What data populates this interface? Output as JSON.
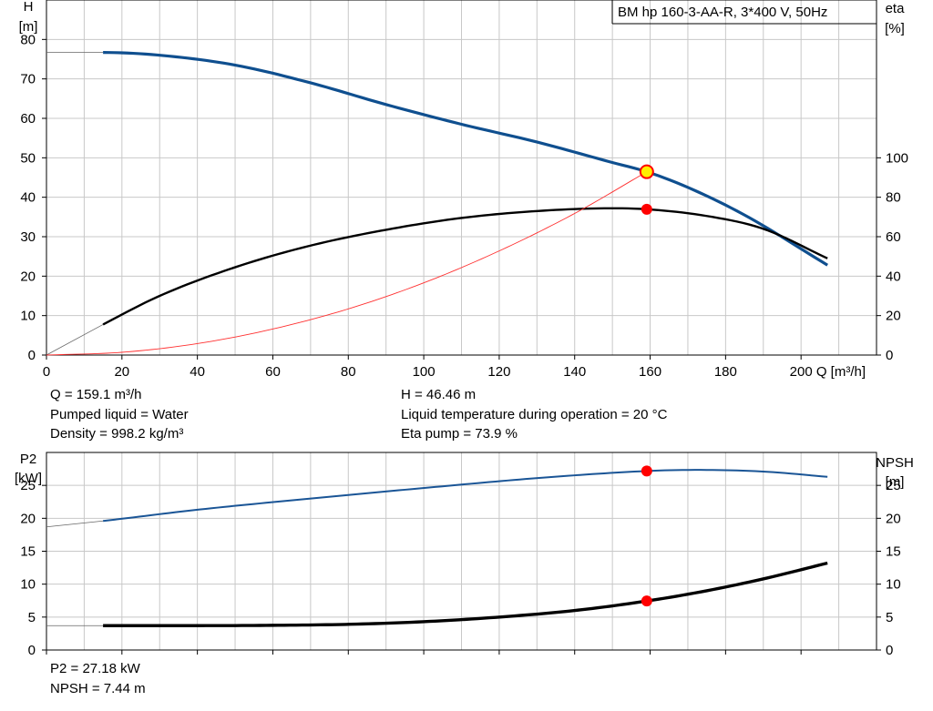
{
  "colors": {
    "head_curve": "#0f4f8f",
    "efficiency_curve": "#000000",
    "system_curve": "#ff3030",
    "power_curve": "#1a5596",
    "npsh_curve": "#000000",
    "duty_point": "#ff0000",
    "duty_point_highlight": "#ffee00",
    "grid": "#c8c8c8"
  },
  "info": {
    "q": "Q = 159.1 m³/h",
    "liquid": "Pumped liquid = Water",
    "density": "Density = 998.2 kg/m³",
    "h": "H = 46.46 m",
    "temp": "Liquid temperature during operation = 20 °C",
    "eta": "Eta pump = 73.9 %",
    "p2": "P2 = 27.18 kW",
    "npsh": "NPSH = 7.44 m"
  },
  "chart_data": [
    {
      "type": "line",
      "title": "BM hp 160-3-AA-R, 3*400 V, 50Hz",
      "xlabel": "Q [m³/h]",
      "ylabel": "H [m]",
      "ylabel_line1": "H",
      "ylabel_line2": "[m]",
      "y2label": "eta [%]",
      "y2label_line1": "eta",
      "y2label_line2": "[%]",
      "xlim": [
        0,
        220
      ],
      "ylim": [
        0,
        90
      ],
      "y2lim": [
        0,
        180
      ],
      "xticks": [
        0,
        20,
        40,
        60,
        80,
        100,
        120,
        140,
        160,
        180,
        200
      ],
      "yticks": [
        0,
        10,
        20,
        30,
        40,
        50,
        60,
        70,
        80
      ],
      "y2ticks": [
        0,
        20,
        40,
        60,
        80,
        100
      ],
      "grid": true,
      "series": [
        {
          "key": "head",
          "axis": "left",
          "extrapolate_to_zero": true,
          "x": [
            0,
            15,
            30,
            50,
            70,
            90,
            110,
            130,
            150,
            159.1,
            170,
            185,
            207
          ],
          "y": [
            76.7,
            76.7,
            76.0,
            73.5,
            69.0,
            63.5,
            58.5,
            54.0,
            48.8,
            46.46,
            42.5,
            35.5,
            22.8
          ]
        },
        {
          "key": "eta",
          "axis": "right",
          "extrapolate_to_zero": true,
          "x": [
            0,
            15,
            30,
            50,
            70,
            90,
            110,
            130,
            150,
            159.1,
            175,
            190,
            207
          ],
          "y": [
            0,
            15.5,
            30,
            44.5,
            55.5,
            63.5,
            69.5,
            73,
            74.4,
            73.9,
            70.5,
            64,
            49
          ]
        },
        {
          "key": "system",
          "axis": "left",
          "x": [
            0,
            20,
            40,
            60,
            80,
            100,
            120,
            140,
            159.1
          ],
          "y": [
            0,
            0.7,
            2.9,
            6.6,
            11.7,
            18.3,
            26.4,
            35.9,
            46.46
          ]
        }
      ],
      "duty_points": [
        {
          "series": "head",
          "x": 159.1,
          "y": 46.46
        },
        {
          "series": "eta",
          "x": 159.1,
          "y": 73.9
        }
      ]
    },
    {
      "type": "line",
      "ylabel": "P2 [kW]",
      "ylabel_line1": "P2",
      "ylabel_line2": "[kW]",
      "y2label": "NPSH [m]",
      "y2label_line1": "NPSH",
      "y2label_line2": "[m]",
      "xlim": [
        0,
        220
      ],
      "ylim": [
        0,
        30
      ],
      "y2lim": [
        0,
        30
      ],
      "xticks": [
        0,
        20,
        40,
        60,
        80,
        100,
        120,
        140,
        160,
        180,
        200
      ],
      "yticks": [
        0,
        5,
        10,
        15,
        20,
        25
      ],
      "y2ticks": [
        0,
        5,
        10,
        15,
        20,
        25
      ],
      "grid": true,
      "series": [
        {
          "key": "p2",
          "axis": "left",
          "extrapolate_to_zero": true,
          "x": [
            0,
            15,
            40,
            70,
            100,
            130,
            159.1,
            172,
            190,
            207
          ],
          "y": [
            18.7,
            19.6,
            21.3,
            23.0,
            24.6,
            26.1,
            27.18,
            27.35,
            27.1,
            26.3
          ]
        },
        {
          "key": "npsh",
          "axis": "right",
          "extrapolate_to_zero": true,
          "x": [
            0,
            15,
            40,
            60,
            80,
            100,
            120,
            140,
            159.1,
            175,
            190,
            207
          ],
          "y": [
            3.7,
            3.7,
            3.7,
            3.75,
            3.9,
            4.3,
            5.0,
            6.0,
            7.44,
            9.0,
            10.8,
            13.2
          ]
        }
      ],
      "duty_points": [
        {
          "series": "p2",
          "x": 159.1,
          "y": 27.18
        },
        {
          "series": "npsh",
          "x": 159.1,
          "y": 7.44
        }
      ]
    }
  ]
}
